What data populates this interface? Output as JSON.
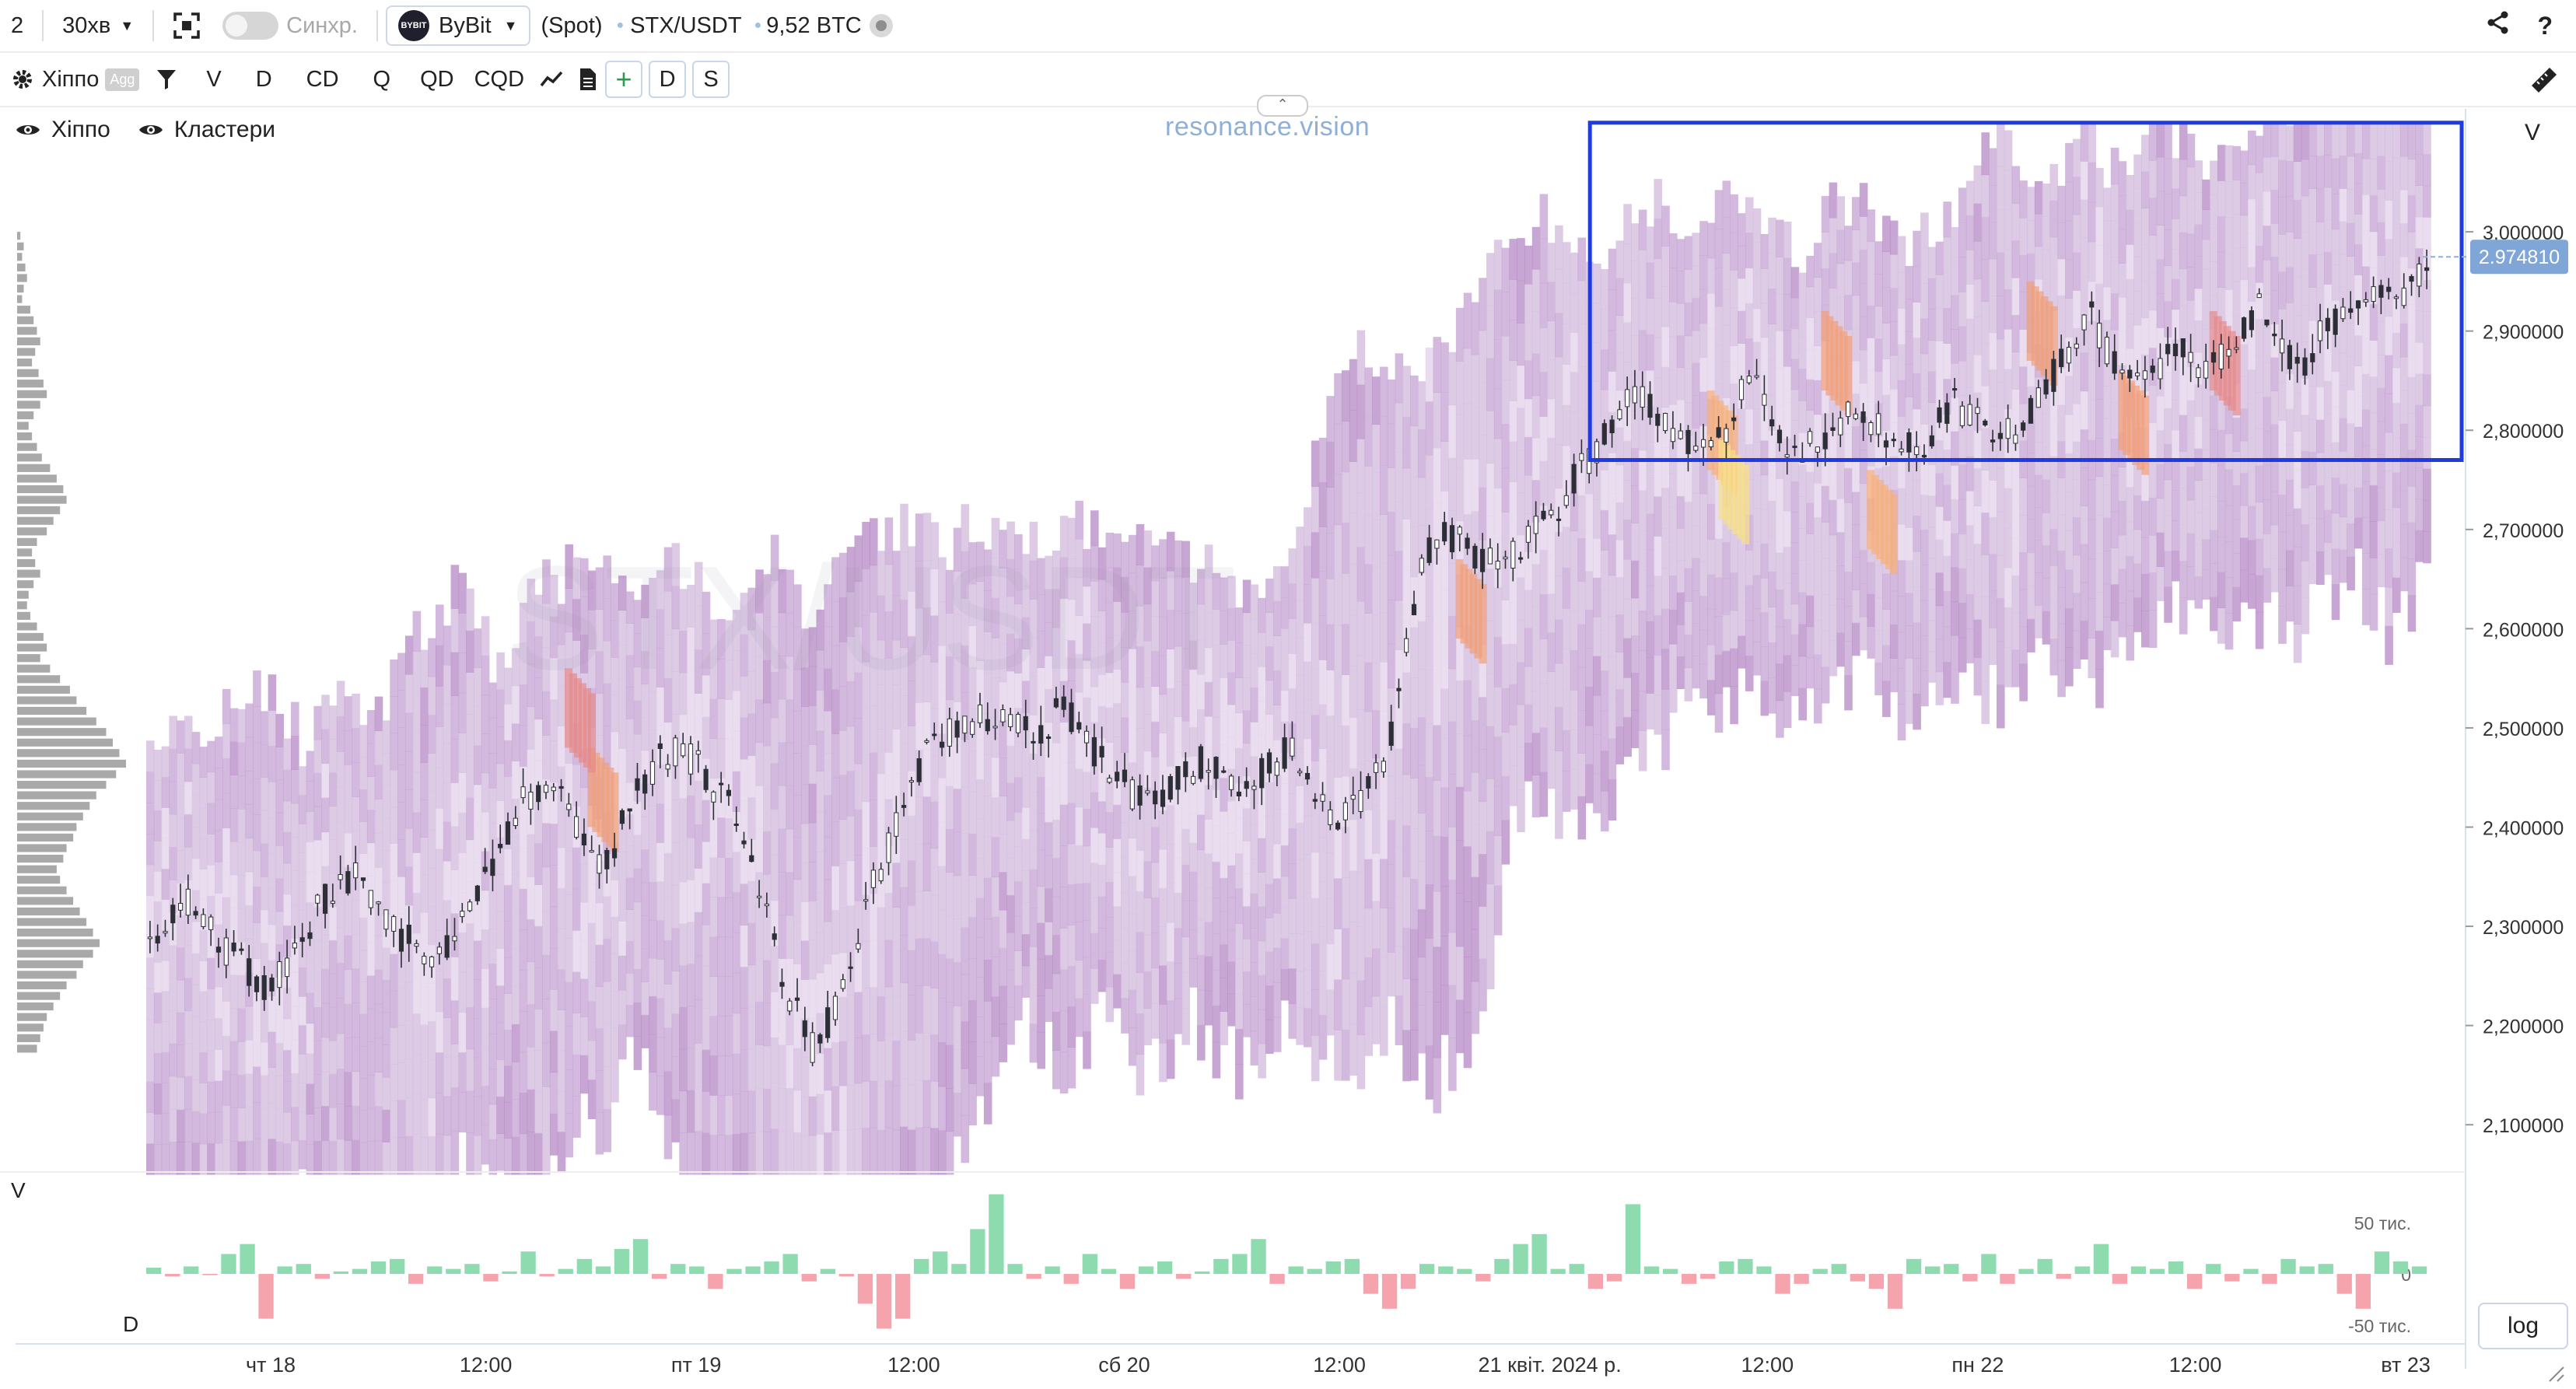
{
  "toolbar": {
    "layout_number": "2",
    "timeframe": "30хв",
    "sync_label": "Синхр.",
    "exchange_logo": "BYBIT",
    "exchange": "ByBit",
    "market_type": "(Spot)",
    "pair": "STX/USDT",
    "volume_24h": "9,52 BTC"
  },
  "toolbar2": {
    "indicator_name": "Хіппо",
    "agg_badge": "Agg",
    "buttons": [
      "V",
      "D",
      "CD",
      "Q",
      "QD",
      "CQD"
    ],
    "d_button": "D",
    "s_button": "S"
  },
  "layers": {
    "hippo": "Хіппо",
    "clusters": "Кластери"
  },
  "watermark": "resonance.vision",
  "chart_data": {
    "type": "candlestick_heatmap",
    "symbol_watermark": "STX/USDT",
    "y_axis_label": "V",
    "price_ticks": [
      "3,000000",
      "2,900000",
      "2,800000",
      "2,700000",
      "2,600000",
      "2,500000",
      "2,400000",
      "2,300000",
      "2,200000",
      "2,100000"
    ],
    "price_tick_values": [
      3.0,
      2.9,
      2.8,
      2.7,
      2.6,
      2.5,
      2.4,
      2.3,
      2.2,
      2.1
    ],
    "ylim": [
      2.05,
      3.12
    ],
    "last_price_label": "2.974810",
    "last_price": 2.97481,
    "x_ticks": [
      "чт 18",
      "12:00",
      "пт 19",
      "12:00",
      "сб 20",
      "12:00",
      "21 квіт. 2024 р.",
      "12:00",
      "пн 22",
      "12:00",
      "вт 23"
    ],
    "x_tick_fractions": [
      0.0,
      0.091,
      0.18,
      0.272,
      0.361,
      0.452,
      0.541,
      0.633,
      0.722,
      0.814,
      0.903
    ],
    "price_path": [
      2.27,
      2.31,
      2.33,
      2.3,
      2.28,
      2.26,
      2.24,
      2.25,
      2.27,
      2.32,
      2.34,
      2.35,
      2.33,
      2.3,
      2.28,
      2.26,
      2.29,
      2.33,
      2.36,
      2.4,
      2.43,
      2.45,
      2.42,
      2.38,
      2.36,
      2.4,
      2.44,
      2.47,
      2.48,
      2.46,
      2.43,
      2.42,
      2.35,
      2.28,
      2.22,
      2.18,
      2.21,
      2.27,
      2.33,
      2.38,
      2.43,
      2.47,
      2.49,
      2.5,
      2.51,
      2.52,
      2.5,
      2.49,
      2.52,
      2.5,
      2.47,
      2.45,
      2.43,
      2.42,
      2.44,
      2.46,
      2.47,
      2.45,
      2.44,
      2.46,
      2.48,
      2.45,
      2.42,
      2.41,
      2.43,
      2.46,
      2.55,
      2.67,
      2.7,
      2.69,
      2.67,
      2.66,
      2.68,
      2.7,
      2.72,
      2.75,
      2.78,
      2.8,
      2.84,
      2.82,
      2.8,
      2.79,
      2.78,
      2.8,
      2.85,
      2.83,
      2.79,
      2.78,
      2.79,
      2.81,
      2.82,
      2.8,
      2.79,
      2.78,
      2.8,
      2.83,
      2.81,
      2.79,
      2.8,
      2.82,
      2.85,
      2.88,
      2.92,
      2.88,
      2.86,
      2.85,
      2.87,
      2.88,
      2.86,
      2.87,
      2.9,
      2.92,
      2.88,
      2.86,
      2.89,
      2.91,
      2.93,
      2.94,
      2.93,
      2.95,
      2.97
    ],
    "delta_axis": {
      "label": "D",
      "ticks": [
        "50 тис.",
        "0",
        "-50 тис."
      ],
      "tick_values": [
        50000,
        0,
        -50000
      ]
    },
    "delta_bars": [
      2.5,
      -1,
      3,
      -0.5,
      8,
      12,
      -18,
      3,
      4,
      -2,
      1,
      2,
      5,
      6,
      -4,
      3,
      2,
      4,
      -3,
      1,
      9,
      -1,
      2,
      6,
      3,
      10,
      14,
      -2,
      4,
      3,
      -6,
      2,
      3,
      5,
      8,
      -3,
      2,
      -1,
      -12,
      -22,
      -18,
      6,
      9,
      4,
      18,
      32,
      4,
      -2,
      3,
      -4,
      8,
      2,
      -6,
      3,
      5,
      -2,
      1,
      6,
      8,
      14,
      -4,
      3,
      2,
      5,
      6,
      -8,
      -14,
      -6,
      4,
      3,
      2,
      -3,
      6,
      12,
      16,
      2,
      4,
      -6,
      -3,
      28,
      3,
      2,
      -4,
      -2,
      5,
      6,
      3,
      -8,
      -4,
      2,
      4,
      -3,
      -6,
      -14,
      6,
      3,
      4,
      -3,
      8,
      -4,
      2,
      6,
      -2,
      3,
      12,
      -4,
      3,
      2,
      5,
      -6,
      4,
      -3,
      2,
      -4,
      6,
      3,
      4,
      -8,
      -14,
      9,
      5,
      3
    ],
    "volume_profile": [
      2,
      4,
      3,
      5,
      6,
      4,
      3,
      8,
      10,
      12,
      14,
      11,
      9,
      13,
      16,
      18,
      14,
      10,
      7,
      9,
      12,
      15,
      20,
      24,
      28,
      30,
      26,
      22,
      18,
      12,
      9,
      11,
      14,
      10,
      7,
      6,
      8,
      12,
      16,
      18,
      14,
      20,
      26,
      32,
      36,
      42,
      48,
      54,
      58,
      62,
      66,
      60,
      54,
      48,
      44,
      40,
      36,
      34,
      30,
      28,
      24,
      26,
      30,
      34,
      38,
      42,
      46,
      50,
      46,
      40,
      36,
      30,
      26,
      22,
      18,
      16,
      14,
      12
    ],
    "volume_profile_range": [
      2.17,
      3.0
    ],
    "highlight_box": {
      "price_top": 3.11,
      "price_bottom": 2.77,
      "time_from": 0.632,
      "time_to": 1.0
    }
  },
  "log_button": "log"
}
